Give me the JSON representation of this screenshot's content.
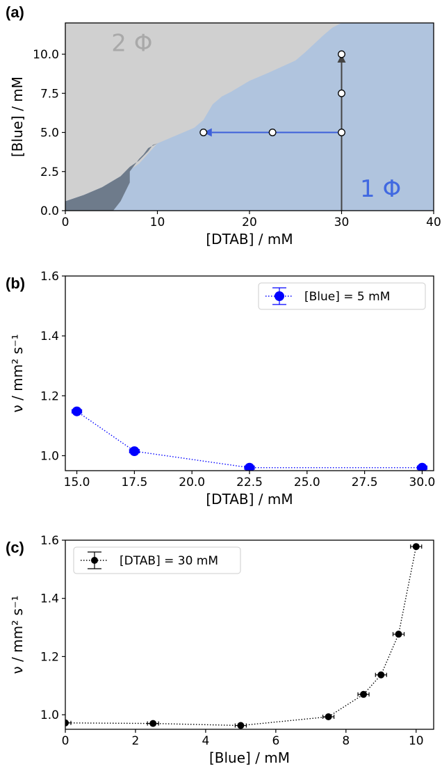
{
  "chart_data": [
    {
      "panel_label": "(a)",
      "type": "area",
      "xlabel": "[DTAB] / mM",
      "ylabel": "[Blue] / mM",
      "xlim": [
        0,
        40
      ],
      "ylim": [
        0,
        12
      ],
      "xticks": [
        "0",
        "10",
        "20",
        "30",
        "40"
      ],
      "yticks": [
        "0.0",
        "2.5",
        "5.0",
        "7.5",
        "10.0"
      ],
      "regions": [
        {
          "label": "2 Φ",
          "color": "#d0d0d0"
        },
        {
          "label": "1 Φ",
          "color": "#b0c4de"
        }
      ],
      "dark_region_color": "#6e7b8b",
      "phase_boundary": [
        [
          0,
          0.6
        ],
        [
          2,
          1.0
        ],
        [
          4,
          1.5
        ],
        [
          6,
          2.2
        ],
        [
          8,
          3.0
        ],
        [
          10,
          4.3
        ],
        [
          12,
          4.8
        ],
        [
          14,
          5.3
        ],
        [
          15,
          5.8
        ],
        [
          16,
          6.8
        ],
        [
          17,
          7.3
        ],
        [
          18,
          7.6
        ],
        [
          20,
          8.3
        ],
        [
          22,
          8.8
        ],
        [
          25,
          9.6
        ],
        [
          26,
          10.1
        ],
        [
          28,
          11.2
        ],
        [
          29,
          11.7
        ],
        [
          30,
          12
        ]
      ],
      "dark_region": [
        [
          0,
          0
        ],
        [
          0,
          0.6
        ],
        [
          2,
          1.0
        ],
        [
          4,
          1.5
        ],
        [
          6,
          2.2
        ],
        [
          7,
          2.8
        ],
        [
          8,
          3.2
        ],
        [
          9,
          3.8
        ],
        [
          9.5,
          4.2
        ],
        [
          10,
          4.3
        ],
        [
          9,
          4.0
        ],
        [
          8.5,
          3.6
        ],
        [
          8,
          3.3
        ],
        [
          7.5,
          2.9
        ],
        [
          7,
          2.5
        ],
        [
          7,
          1.8
        ],
        [
          6.5,
          1.2
        ],
        [
          6,
          0.6
        ],
        [
          5.2,
          0
        ]
      ],
      "points": [
        [
          15,
          5
        ],
        [
          22.5,
          5
        ],
        [
          30,
          5
        ],
        [
          30,
          7.5
        ],
        [
          30,
          10
        ]
      ],
      "arrows": [
        {
          "from": [
            30,
            5
          ],
          "to": [
            15,
            5
          ],
          "color": "#3d5fd9"
        },
        {
          "from": [
            30,
            0
          ],
          "to": [
            30,
            10
          ],
          "color": "#444444"
        }
      ]
    },
    {
      "panel_label": "(b)",
      "type": "line",
      "xlabel": "[DTAB] / mM",
      "ylabel": "ν / mm² s⁻¹",
      "xlim": [
        14.5,
        30.5
      ],
      "ylim": [
        0.95,
        1.6
      ],
      "xticks": [
        "15.0",
        "17.5",
        "20.0",
        "22.5",
        "25.0",
        "27.5",
        "30.0"
      ],
      "yticks": [
        "1.0",
        "1.2",
        "1.4",
        "1.6"
      ],
      "legend_position": "top-right",
      "series": [
        {
          "name": "[Blue] = 5 mM",
          "color": "#0000ff",
          "x": [
            15,
            17.5,
            22.5,
            30
          ],
          "values": [
            1.148,
            1.015,
            0.96,
            0.96
          ]
        }
      ]
    },
    {
      "panel_label": "(c)",
      "type": "line",
      "xlabel": "[Blue] / mM",
      "ylabel": "ν / mm² s⁻¹",
      "xlim": [
        0,
        10.5
      ],
      "ylim": [
        0.95,
        1.6
      ],
      "xticks": [
        "0",
        "2",
        "4",
        "6",
        "8",
        "10"
      ],
      "yticks": [
        "1.0",
        "1.2",
        "1.4",
        "1.6"
      ],
      "legend_position": "top-left",
      "series": [
        {
          "name": "[DTAB] = 30 mM",
          "color": "#000000",
          "x": [
            0,
            2.5,
            5,
            7.5,
            8.5,
            9,
            9.5,
            10
          ],
          "values": [
            0.972,
            0.97,
            0.963,
            0.993,
            1.07,
            1.137,
            1.277,
            1.578
          ]
        }
      ]
    }
  ]
}
